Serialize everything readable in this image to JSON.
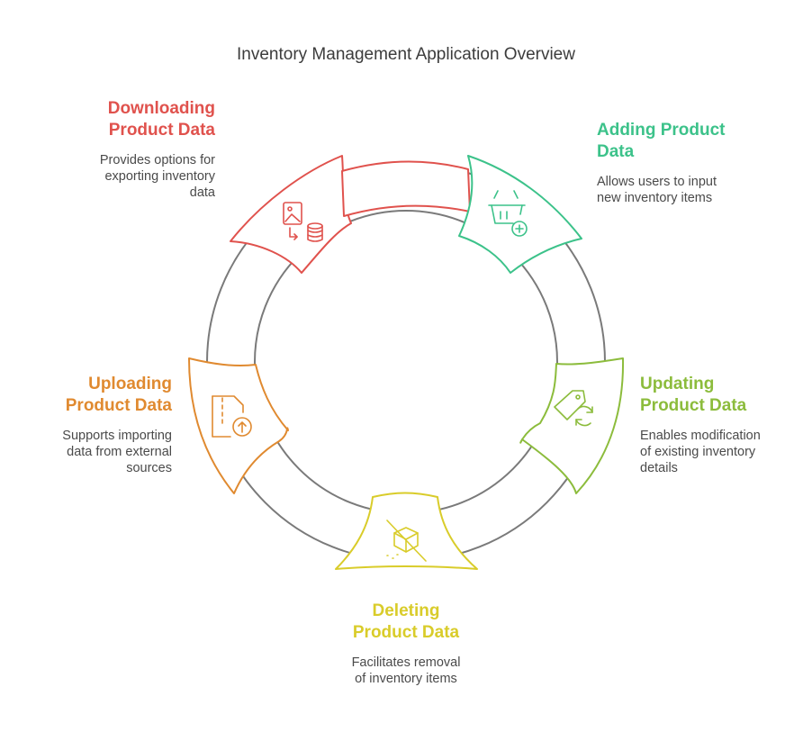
{
  "title": "Inventory Management Application Overview",
  "colors": {
    "ring": "#7a7a7a",
    "downloading": "#e0524d",
    "adding": "#3cc28a",
    "updating": "#8cbc3c",
    "deleting": "#d9cc2a",
    "uploading": "#e08a30"
  },
  "steps": {
    "downloading": {
      "title_line1": "Downloading",
      "title_line2": "Product Data",
      "desc_line1": "Provides options for",
      "desc_line2": "exporting inventory",
      "desc_line3": "data",
      "icon": "image-to-database-icon"
    },
    "adding": {
      "title_line1": "Adding Product",
      "title_line2": "Data",
      "desc_line1": "Allows users to input",
      "desc_line2": "new inventory items",
      "desc_line3": "",
      "icon": "basket-add-icon"
    },
    "updating": {
      "title_line1": "Updating",
      "title_line2": "Product Data",
      "desc_line1": "Enables modification",
      "desc_line2": "of existing inventory",
      "desc_line3": "details",
      "icon": "tag-refresh-icon"
    },
    "deleting": {
      "title_line1": "Deleting",
      "title_line2": "Product Data",
      "desc_line1": "Facilitates removal",
      "desc_line2": "of inventory items",
      "desc_line3": "",
      "icon": "box-slash-icon"
    },
    "uploading": {
      "title_line1": "Uploading",
      "title_line2": "Product Data",
      "desc_line1": "Supports importing",
      "desc_line2": "data from external",
      "desc_line3": "sources",
      "icon": "file-upload-icon"
    }
  }
}
